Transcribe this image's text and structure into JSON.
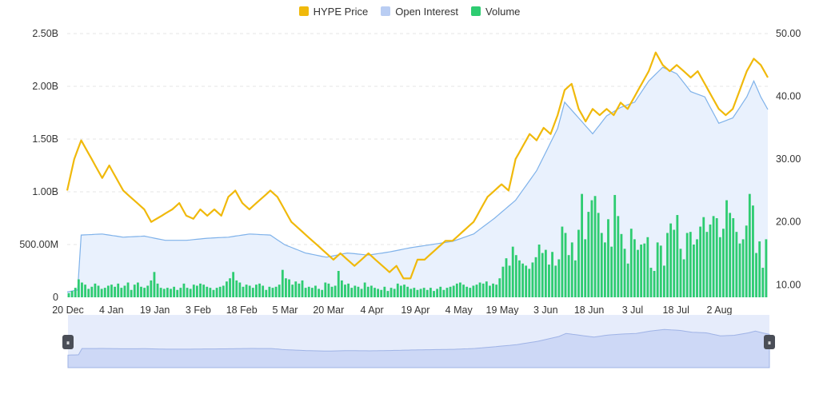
{
  "legend": [
    {
      "label": "HYPE Price",
      "color": "#f0b90b"
    },
    {
      "label": "Open Interest",
      "color": "#b9cdf3"
    },
    {
      "label": "Volume",
      "color": "#2ecc71"
    }
  ],
  "chart_data": {
    "type": "line",
    "x_ticks": [
      "20 Dec",
      "4 Jan",
      "19 Jan",
      "3 Feb",
      "18 Feb",
      "5 Mar",
      "20 Mar",
      "4 Apr",
      "19 Apr",
      "4 May",
      "19 May",
      "3 Jun",
      "18 Jun",
      "3 Jul",
      "18 Jul",
      "2 Aug"
    ],
    "left_axis": {
      "ticks": [
        "0",
        "500.00M",
        "1.00B",
        "1.50B",
        "2.00B",
        "2.50B"
      ],
      "range": [
        0,
        2500000000
      ]
    },
    "right_axis": {
      "ticks": [
        "10.00",
        "20.00",
        "30.00",
        "40.00",
        "50.00"
      ],
      "range": [
        8,
        50
      ]
    },
    "grid": true,
    "legend_position": "top-center",
    "series": [
      {
        "name": "HYPE Price",
        "axis": "right",
        "anchors": [
          [
            0,
            25
          ],
          [
            2,
            30
          ],
          [
            4,
            33
          ],
          [
            6,
            31
          ],
          [
            8,
            29
          ],
          [
            10,
            27
          ],
          [
            12,
            29
          ],
          [
            14,
            27
          ],
          [
            16,
            25
          ],
          [
            18,
            24
          ],
          [
            20,
            23
          ],
          [
            22,
            22
          ],
          [
            24,
            20
          ],
          [
            27,
            21
          ],
          [
            30,
            22
          ],
          [
            32,
            23
          ],
          [
            34,
            21
          ],
          [
            36,
            20.5
          ],
          [
            38,
            22
          ],
          [
            40,
            21
          ],
          [
            42,
            22
          ],
          [
            44,
            21
          ],
          [
            46,
            24
          ],
          [
            48,
            25
          ],
          [
            50,
            23
          ],
          [
            52,
            22
          ],
          [
            54,
            23
          ],
          [
            56,
            24
          ],
          [
            58,
            25
          ],
          [
            60,
            24
          ],
          [
            62,
            22
          ],
          [
            64,
            20
          ],
          [
            66,
            19
          ],
          [
            68,
            18
          ],
          [
            70,
            17
          ],
          [
            72,
            16
          ],
          [
            74,
            15
          ],
          [
            76,
            14
          ],
          [
            78,
            15
          ],
          [
            80,
            14
          ],
          [
            82,
            13
          ],
          [
            84,
            14
          ],
          [
            86,
            15
          ],
          [
            88,
            14
          ],
          [
            90,
            13
          ],
          [
            92,
            12
          ],
          [
            94,
            13
          ],
          [
            96,
            11
          ],
          [
            98,
            11
          ],
          [
            100,
            14
          ],
          [
            102,
            14
          ],
          [
            104,
            15
          ],
          [
            106,
            16
          ],
          [
            108,
            17
          ],
          [
            110,
            17
          ],
          [
            112,
            18
          ],
          [
            114,
            19
          ],
          [
            116,
            20
          ],
          [
            118,
            22
          ],
          [
            120,
            24
          ],
          [
            122,
            25
          ],
          [
            124,
            26
          ],
          [
            126,
            25
          ],
          [
            128,
            30
          ],
          [
            130,
            32
          ],
          [
            132,
            34
          ],
          [
            134,
            33
          ],
          [
            136,
            35
          ],
          [
            138,
            34
          ],
          [
            140,
            37
          ],
          [
            142,
            41
          ],
          [
            144,
            42
          ],
          [
            146,
            38
          ],
          [
            148,
            36
          ],
          [
            150,
            38
          ],
          [
            152,
            37
          ],
          [
            154,
            38
          ],
          [
            156,
            37
          ],
          [
            158,
            39
          ],
          [
            160,
            38
          ],
          [
            162,
            40
          ],
          [
            164,
            42
          ],
          [
            166,
            44
          ],
          [
            168,
            47
          ],
          [
            170,
            45
          ],
          [
            172,
            44
          ],
          [
            174,
            45
          ],
          [
            176,
            44
          ],
          [
            178,
            43
          ],
          [
            180,
            44
          ],
          [
            182,
            42
          ],
          [
            184,
            40
          ],
          [
            186,
            38
          ],
          [
            188,
            37
          ],
          [
            190,
            38
          ],
          [
            192,
            41
          ],
          [
            194,
            44
          ],
          [
            196,
            46
          ],
          [
            198,
            45
          ],
          [
            200,
            43
          ]
        ]
      },
      {
        "name": "Open Interest",
        "axis": "left",
        "anchors": [
          [
            0,
            0.05
          ],
          [
            3,
            0.07
          ],
          [
            4,
            0.59
          ],
          [
            10,
            0.6
          ],
          [
            16,
            0.57
          ],
          [
            22,
            0.58
          ],
          [
            28,
            0.54
          ],
          [
            34,
            0.54
          ],
          [
            40,
            0.56
          ],
          [
            46,
            0.57
          ],
          [
            52,
            0.6
          ],
          [
            58,
            0.59
          ],
          [
            62,
            0.5
          ],
          [
            68,
            0.42
          ],
          [
            74,
            0.38
          ],
          [
            80,
            0.42
          ],
          [
            86,
            0.4
          ],
          [
            92,
            0.43
          ],
          [
            98,
            0.47
          ],
          [
            104,
            0.5
          ],
          [
            110,
            0.53
          ],
          [
            116,
            0.6
          ],
          [
            122,
            0.75
          ],
          [
            128,
            0.92
          ],
          [
            134,
            1.2
          ],
          [
            140,
            1.6
          ],
          [
            142,
            1.85
          ],
          [
            146,
            1.7
          ],
          [
            150,
            1.55
          ],
          [
            154,
            1.72
          ],
          [
            158,
            1.8
          ],
          [
            162,
            1.85
          ],
          [
            166,
            2.05
          ],
          [
            170,
            2.18
          ],
          [
            174,
            2.12
          ],
          [
            178,
            1.95
          ],
          [
            182,
            1.9
          ],
          [
            186,
            1.65
          ],
          [
            190,
            1.7
          ],
          [
            194,
            1.9
          ],
          [
            196,
            2.05
          ],
          [
            198,
            1.9
          ],
          [
            200,
            1.78
          ]
        ]
      },
      {
        "name": "Volume",
        "axis": "left",
        "values": [
          0.04,
          0.06,
          0.09,
          0.17,
          0.14,
          0.12,
          0.08,
          0.1,
          0.13,
          0.11,
          0.08,
          0.09,
          0.11,
          0.12,
          0.1,
          0.13,
          0.09,
          0.11,
          0.14,
          0.07,
          0.12,
          0.14,
          0.1,
          0.09,
          0.11,
          0.16,
          0.24,
          0.13,
          0.09,
          0.08,
          0.09,
          0.08,
          0.1,
          0.07,
          0.09,
          0.13,
          0.09,
          0.08,
          0.12,
          0.11,
          0.13,
          0.12,
          0.1,
          0.09,
          0.07,
          0.09,
          0.1,
          0.11,
          0.15,
          0.18,
          0.24,
          0.16,
          0.14,
          0.1,
          0.12,
          0.11,
          0.09,
          0.12,
          0.13,
          0.11,
          0.07,
          0.1,
          0.09,
          0.1,
          0.12,
          0.26,
          0.18,
          0.17,
          0.12,
          0.15,
          0.13,
          0.16,
          0.09,
          0.1,
          0.09,
          0.11,
          0.08,
          0.07,
          0.14,
          0.13,
          0.1,
          0.11,
          0.25,
          0.16,
          0.12,
          0.13,
          0.09,
          0.11,
          0.1,
          0.08,
          0.14,
          0.1,
          0.11,
          0.09,
          0.08,
          0.07,
          0.1,
          0.06,
          0.09,
          0.08,
          0.13,
          0.11,
          0.12,
          0.1,
          0.08,
          0.09,
          0.07,
          0.08,
          0.09,
          0.07,
          0.09,
          0.06,
          0.08,
          0.1,
          0.07,
          0.09,
          0.1,
          0.11,
          0.13,
          0.14,
          0.12,
          0.1,
          0.09,
          0.11,
          0.12,
          0.14,
          0.13,
          0.15,
          0.11,
          0.13,
          0.12,
          0.18,
          0.29,
          0.37,
          0.3,
          0.48,
          0.4,
          0.35,
          0.32,
          0.3,
          0.27,
          0.33,
          0.38,
          0.5,
          0.42,
          0.45,
          0.31,
          0.43,
          0.3,
          0.36,
          0.67,
          0.61,
          0.4,
          0.52,
          0.35,
          0.64,
          0.98,
          0.55,
          0.81,
          0.92,
          0.96,
          0.8,
          0.61,
          0.52,
          0.74,
          0.48,
          0.97,
          0.77,
          0.6,
          0.46,
          0.32,
          0.65,
          0.55,
          0.45,
          0.5,
          0.51,
          0.57,
          0.28,
          0.25,
          0.52,
          0.49,
          0.3,
          0.61,
          0.7,
          0.64,
          0.78,
          0.46,
          0.36,
          0.61,
          0.62,
          0.5,
          0.55,
          0.67,
          0.76,
          0.62,
          0.69,
          0.77,
          0.75,
          0.57,
          0.65,
          0.92,
          0.8,
          0.75,
          0.62,
          0.51,
          0.55,
          0.68,
          0.98,
          0.87,
          0.42,
          0.53,
          0.28,
          0.55
        ]
      }
    ]
  },
  "navigator": {
    "handle_left_glyph": "⏸",
    "handle_right_glyph": "⏸"
  }
}
